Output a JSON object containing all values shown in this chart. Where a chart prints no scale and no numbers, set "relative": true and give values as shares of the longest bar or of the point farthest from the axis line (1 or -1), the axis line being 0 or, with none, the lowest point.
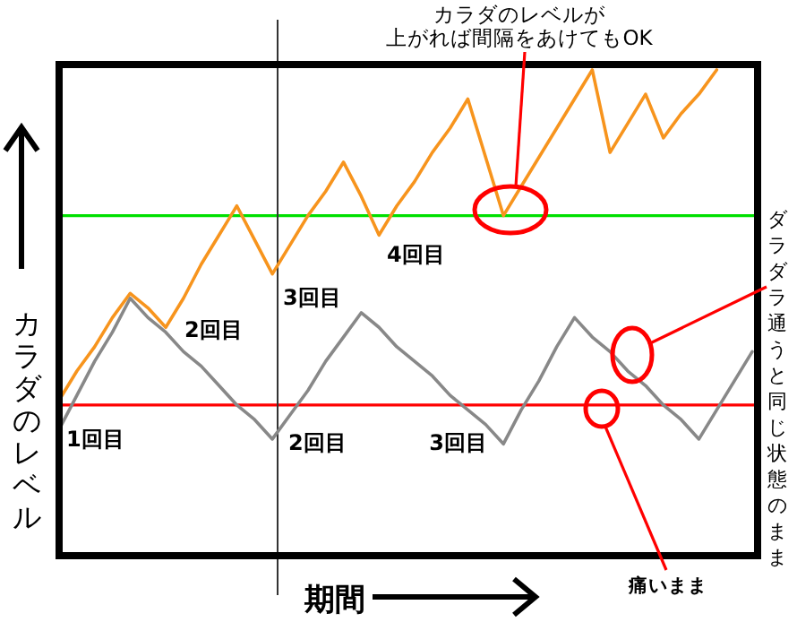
{
  "chart_data": {
    "type": "line",
    "relative": true,
    "marker": "none",
    "line_style": "solid",
    "xlabel": "期間",
    "ylabel": "カラダのレベル",
    "categories": [
      null,
      null,
      null,
      null,
      null,
      null,
      null,
      null,
      null,
      null,
      null,
      null,
      null,
      null,
      null,
      null,
      null,
      null,
      null,
      null,
      null,
      null,
      null,
      null,
      null,
      null,
      null,
      null,
      null,
      null,
      null,
      null,
      null,
      null,
      null,
      null,
      null,
      null,
      null,
      null
    ],
    "series": [
      {
        "color": "#f7941d",
        "values": [
          0.32,
          0.38,
          0.43,
          0.49,
          0.54,
          0.51,
          0.47,
          0.53,
          0.6,
          0.66,
          0.72,
          0.65,
          0.58,
          0.64,
          0.7,
          0.75,
          0.81,
          0.74,
          0.66,
          0.72,
          0.77,
          0.83,
          0.88,
          0.94,
          0.82,
          0.7,
          0.76,
          0.82,
          0.88,
          0.94,
          1.0,
          0.83,
          0.89,
          0.95,
          0.86,
          0.91,
          0.95,
          1.0,
          null,
          null
        ]
      },
      {
        "color": "#888888",
        "values": [
          0.26,
          0.33,
          0.4,
          0.46,
          0.53,
          0.49,
          0.46,
          0.42,
          0.39,
          0.35,
          0.31,
          0.28,
          0.24,
          0.29,
          0.34,
          0.4,
          0.45,
          0.5,
          0.47,
          0.43,
          0.4,
          0.37,
          0.33,
          0.3,
          0.27,
          0.23,
          0.3,
          0.36,
          0.43,
          0.49,
          0.45,
          0.42,
          0.38,
          0.35,
          0.31,
          0.28,
          0.24,
          0.3,
          0.36,
          0.42
        ]
      }
    ],
    "ref_lines": [
      {
        "axis": "y",
        "value": 0.7,
        "color": "#00e000"
      },
      {
        "axis": "y",
        "value": 0.31,
        "color": "#ff0000"
      }
    ],
    "annotations": [
      "1回目",
      "2回目",
      "3回目",
      "4回目",
      "2回目",
      "3回目",
      "カラダのレベルが上がれば間隔をあけてもOK",
      "ダラダラ通うと同じ状態のまま",
      "痛いまま"
    ]
  }
}
